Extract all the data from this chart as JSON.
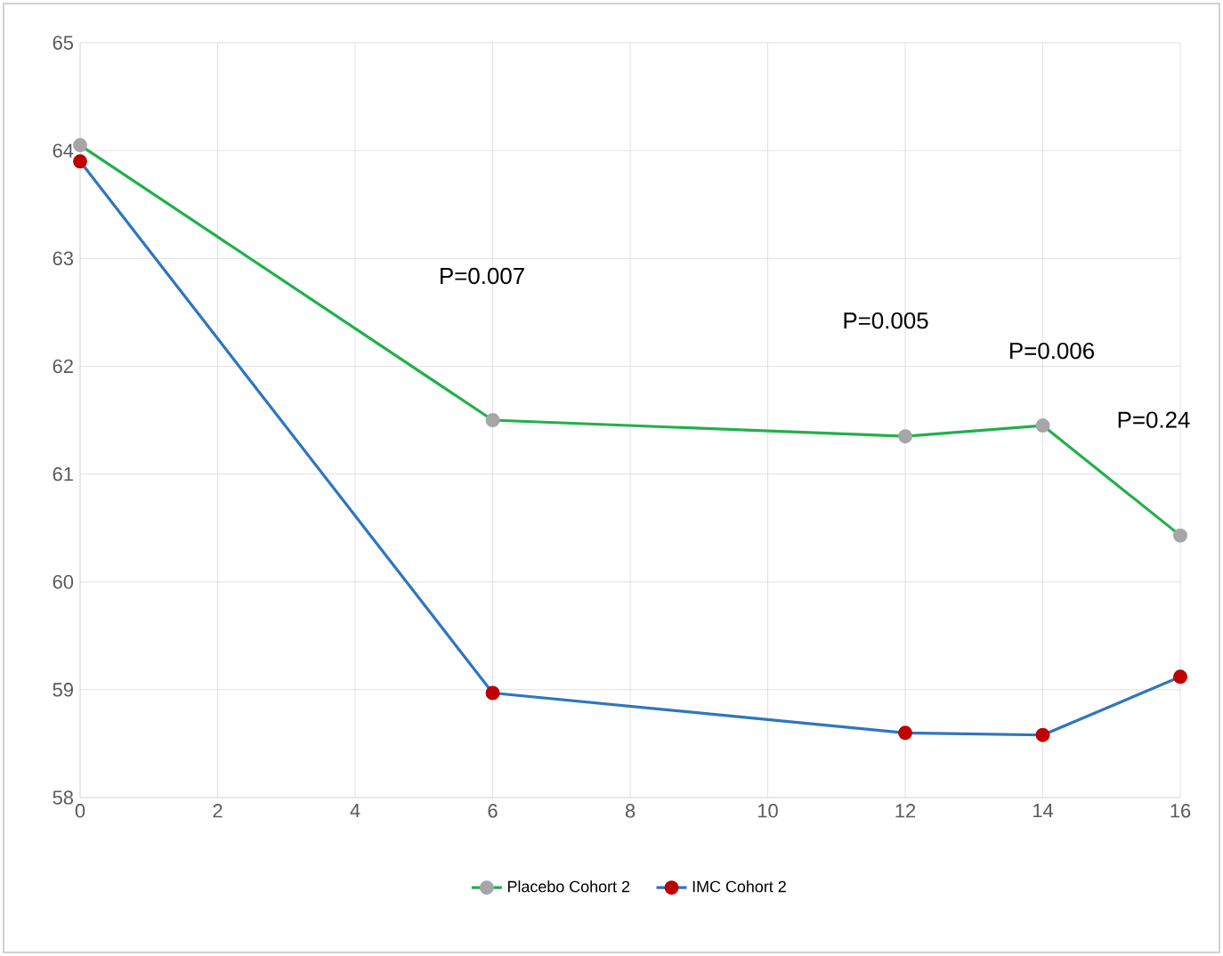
{
  "chart_data": {
    "type": "line",
    "x": [
      0,
      6,
      12,
      14,
      16
    ],
    "series": [
      {
        "name": "Placebo Cohort 2",
        "color": "#22b04b",
        "colors": [
          "#a6a6a6",
          "#a6a6a6",
          "#a6a6a6",
          "#a6a6a6",
          "#a6a6a6"
        ],
        "values": [
          64.05,
          61.5,
          61.35,
          61.45,
          60.43
        ]
      },
      {
        "name": "IMC Cohort 2",
        "color": "#2e75c0",
        "colors": [
          "#c00000",
          "#c00000",
          "#c00000",
          "#c00000",
          "#c00000"
        ],
        "values": [
          63.9,
          58.97,
          58.6,
          58.58,
          59.12
        ]
      }
    ],
    "xlim": [
      0,
      16
    ],
    "xticks": [
      0,
      2,
      4,
      6,
      8,
      10,
      12,
      14,
      16
    ],
    "ylim": [
      58,
      65
    ],
    "yticks": [
      58,
      59,
      60,
      61,
      62,
      63,
      64,
      65
    ],
    "grid": true,
    "legend": "bottom",
    "marker": "circle",
    "line_style": "solid",
    "annotations": [
      "P=0.007",
      "P=0.005",
      "P=0.006",
      "P=0.24"
    ]
  }
}
